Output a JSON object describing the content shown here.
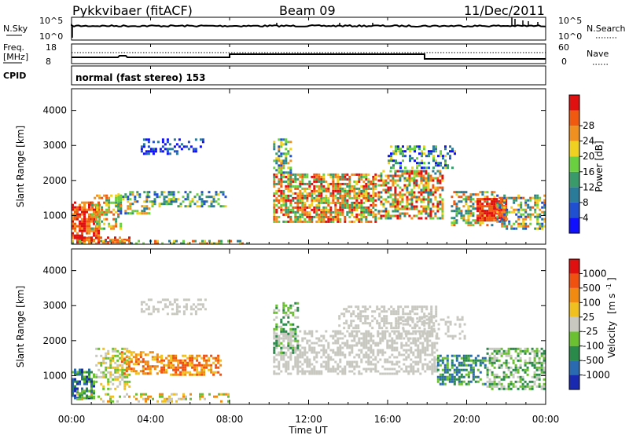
{
  "header": {
    "station": "Pykkvibaer (fitACF)",
    "beam": "Beam 09",
    "date": "11/Dec/2011"
  },
  "top_panels": {
    "nsky_label": "N.Sky",
    "nsky_ticks": [
      "10^5",
      "10^0"
    ],
    "nsearch_label": "N.Search",
    "freq_label": "Freq.",
    "freq_unit": "[MHz]",
    "freq_ticks": [
      "18",
      "8"
    ],
    "nave_label": "Nave",
    "nave_ticks": [
      "60",
      "0"
    ],
    "cpid_label": "CPID",
    "cpid_text": "normal (fast stereo) 153"
  },
  "chart_data": [
    {
      "type": "heatmap",
      "panel": "power",
      "ylabel": "Slant Range [km]",
      "yticks": [
        1000,
        2000,
        3000,
        4000
      ],
      "ylim": [
        180,
        4620
      ],
      "xlim_hours": [
        0,
        24
      ],
      "colorbar": {
        "label": "Power [dB]",
        "ticks": [
          "4",
          "8",
          "12",
          "16",
          "20",
          "24",
          "28"
        ],
        "colors": [
          "#1010ff",
          "#2050d0",
          "#2a7a9a",
          "#3a9a6a",
          "#6ad040",
          "#f0d020",
          "#f09020",
          "#f05a10",
          "#e01010"
        ]
      }
    },
    {
      "type": "heatmap",
      "panel": "velocity",
      "ylabel": "Slant Range [km]",
      "yticks": [
        1000,
        2000,
        3000,
        4000
      ],
      "ylim": [
        180,
        4620
      ],
      "xlim_hours": [
        0,
        24
      ],
      "xlabel": "Time UT",
      "xticks": [
        "00:00",
        "04:00",
        "08:00",
        "12:00",
        "16:00",
        "20:00",
        "00:00"
      ],
      "colorbar": {
        "label": "Velocity",
        "unit": "[m s",
        "unit_sup": "-1",
        "unit_close": "]",
        "ticks": [
          "1000",
          "500",
          "100",
          "25",
          "-25",
          "-100",
          "-500",
          "-1000"
        ],
        "colors": [
          "#1a2ab0",
          "#2a6ab0",
          "#2a8a4a",
          "#6ac030",
          "#c8c8c0",
          "#f0c020",
          "#f08a10",
          "#f05010",
          "#e01010"
        ]
      }
    }
  ]
}
